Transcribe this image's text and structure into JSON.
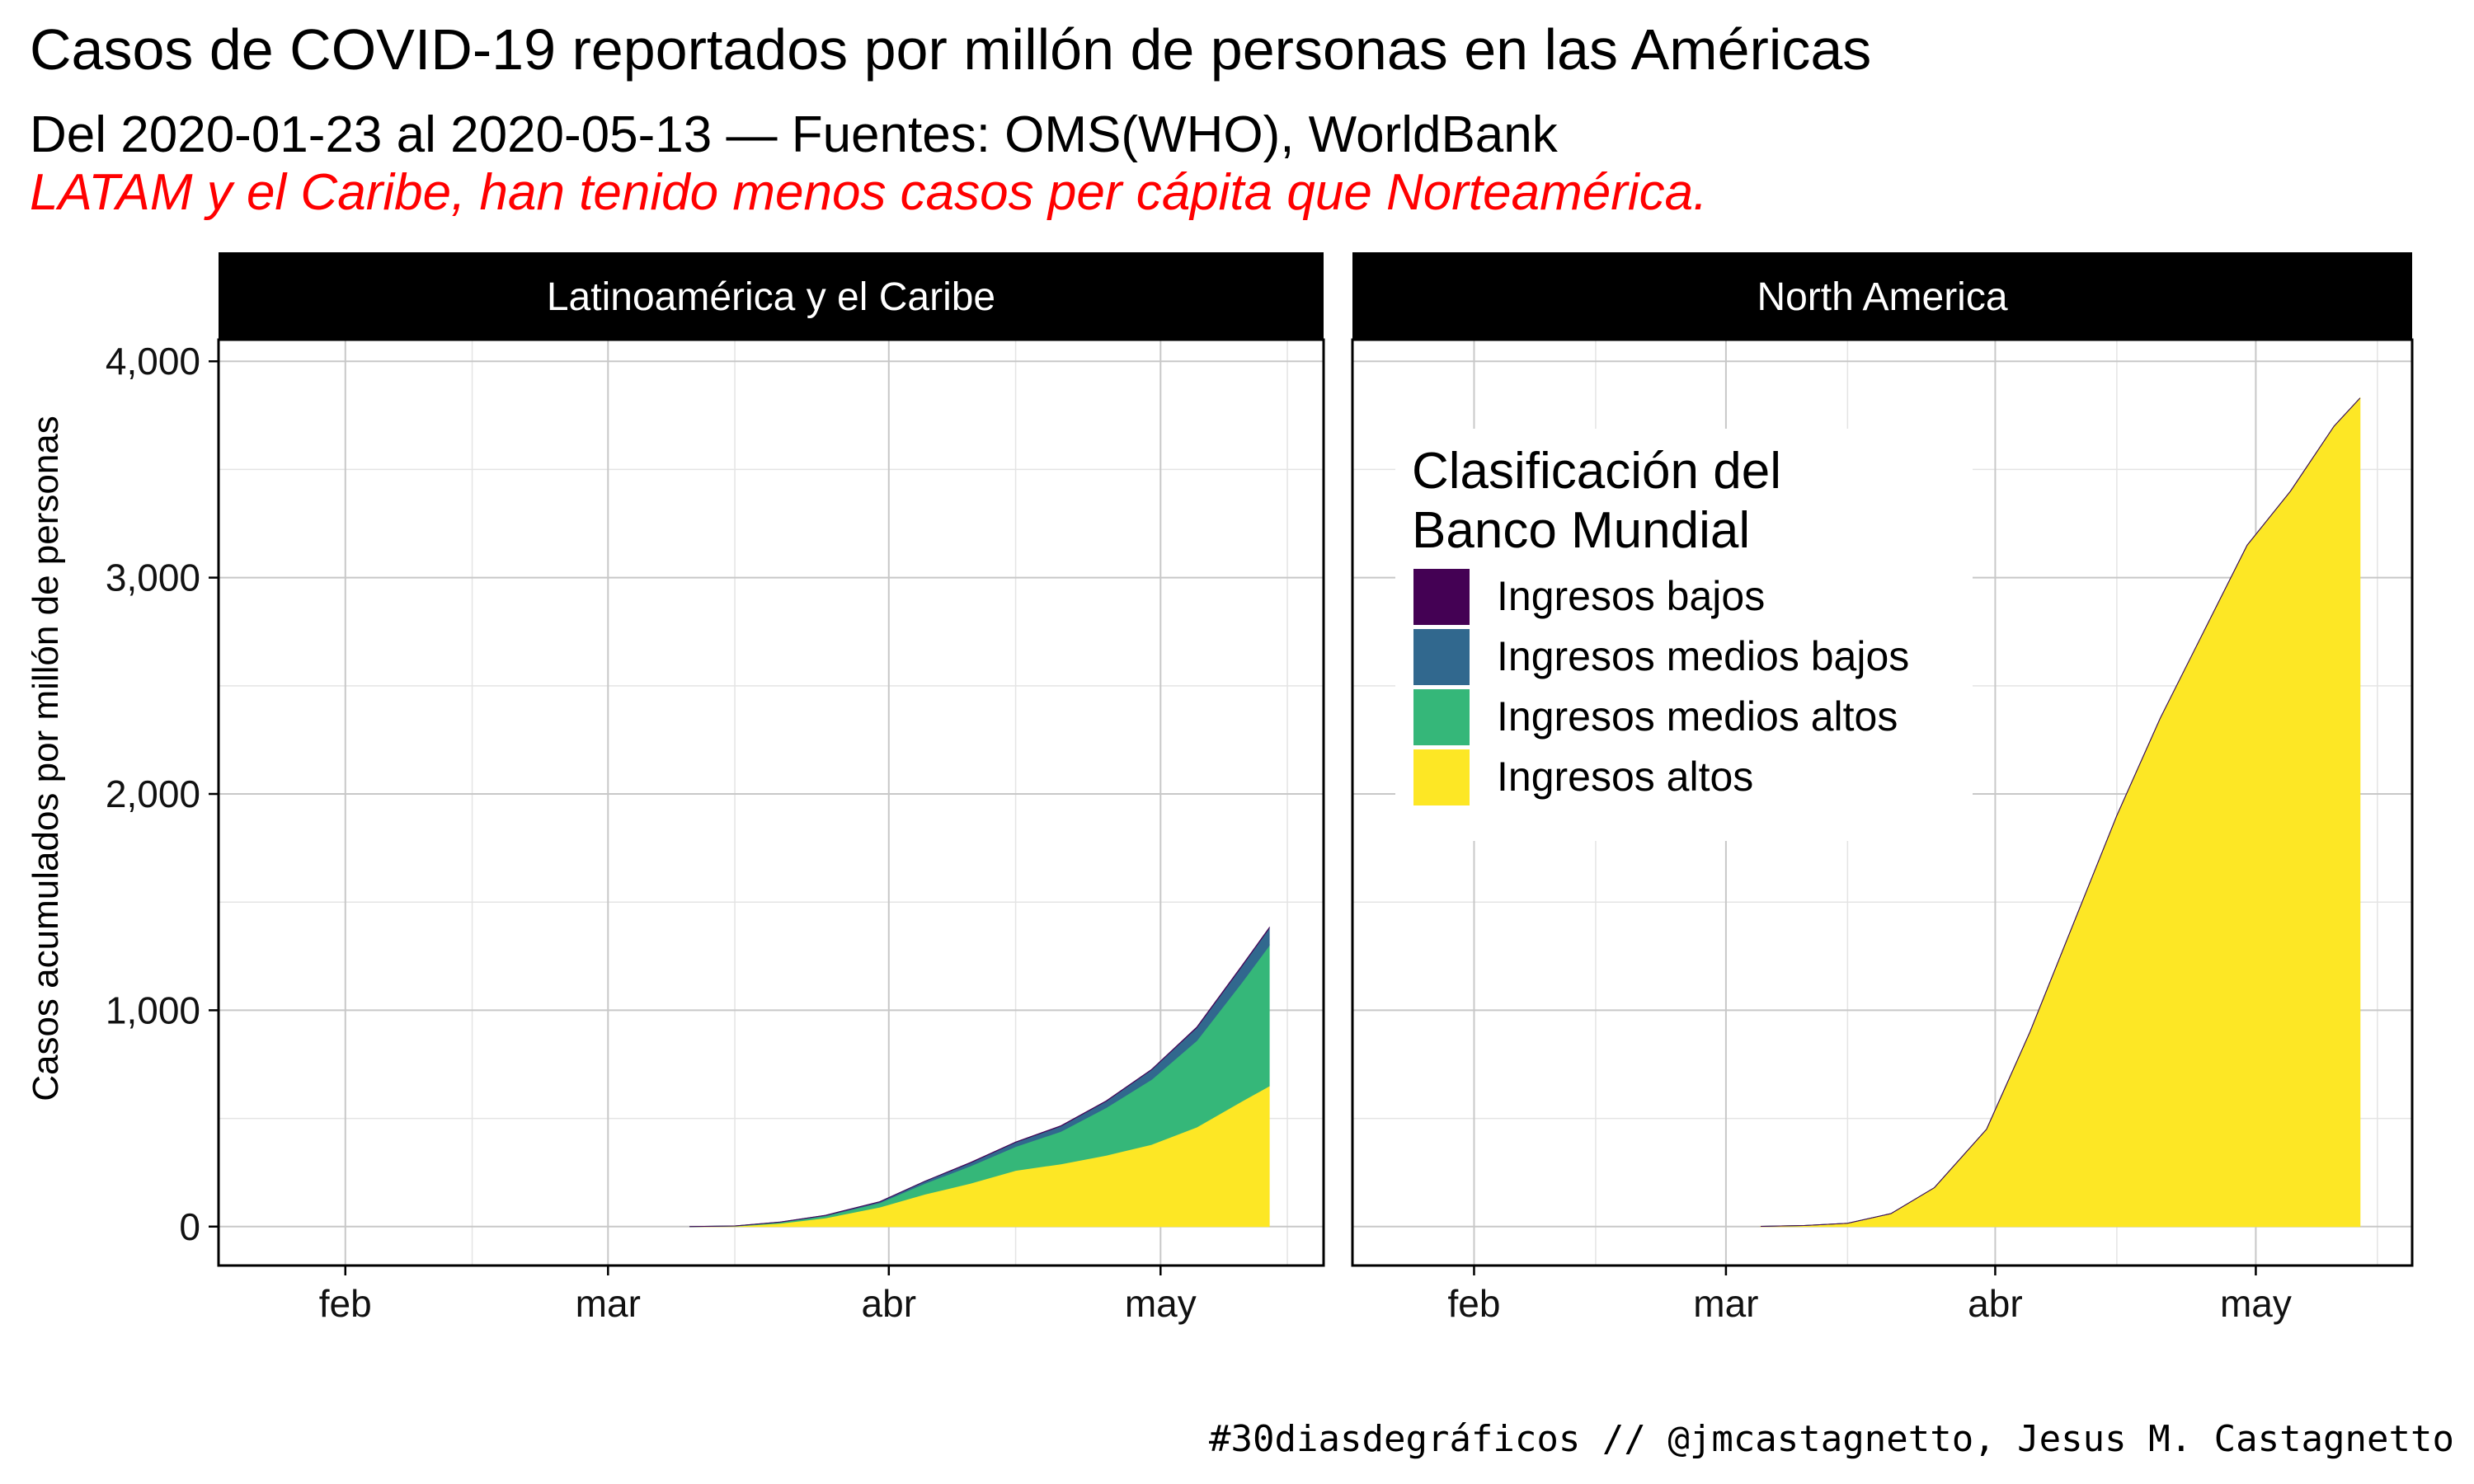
{
  "title": "Casos de COVID-19 reportados por millón de personas en las Américas",
  "subtitle": "Del 2020-01-23 al 2020-05-13 — Fuentes: OMS(WHO), WorldBank",
  "note": "LATAM y el Caribe, han tenido menos casos per cápita que Norteamérica.",
  "caption": "#30diasdegráficos // @jmcastagnetto, Jesus M. Castagnetto",
  "chart_data": {
    "type": "area",
    "stacked": true,
    "ylabel": "Casos acumulados por millón de personas",
    "ylim": [
      -180,
      4100
    ],
    "y_ticks": [
      0,
      1000,
      2000,
      3000,
      4000
    ],
    "y_tick_labels": [
      "0",
      "1,000",
      "2,000",
      "3,000",
      "4,000"
    ],
    "x_range": [
      "2020-01-18",
      "2020-05-19"
    ],
    "x_ticks": [
      "2020-02-01",
      "2020-03-01",
      "2020-04-01",
      "2020-05-01"
    ],
    "x_tick_labels": [
      "feb",
      "mar",
      "abr",
      "may"
    ],
    "grid": true,
    "legend": {
      "title_lines": [
        "Clasificación del",
        "Banco Mundial"
      ],
      "placement": "inside North America panel, top-left",
      "items": [
        {
          "label": "Ingresos bajos",
          "color": "#440154"
        },
        {
          "label": "Ingresos medios bajos",
          "color": "#31688e"
        },
        {
          "label": "Ingresos medios altos",
          "color": "#35b779"
        },
        {
          "label": "Ingresos altos",
          "color": "#fde725"
        }
      ]
    },
    "panels": [
      {
        "name": "Latinoamérica y el Caribe",
        "x": [
          "2020-03-10",
          "2020-03-15",
          "2020-03-20",
          "2020-03-25",
          "2020-03-31",
          "2020-04-05",
          "2020-04-10",
          "2020-04-15",
          "2020-04-20",
          "2020-04-25",
          "2020-04-30",
          "2020-05-05",
          "2020-05-10",
          "2020-05-13"
        ],
        "series": [
          {
            "name": "Ingresos bajos",
            "values": [
              0,
              0,
              0,
              0,
              0,
              0,
              1,
              1,
              1,
              1,
              1,
              2,
              2,
              2
            ]
          },
          {
            "name": "Ingresos medios bajos",
            "values": [
              0,
              0,
              1,
              2,
              5,
              10,
              15,
              20,
              25,
              30,
              45,
              60,
              75,
              80
            ]
          },
          {
            "name": "Ingresos medios altos",
            "values": [
              0,
              1,
              5,
              10,
              20,
              50,
              80,
              110,
              150,
              220,
              300,
              400,
              550,
              650
            ]
          },
          {
            "name": "Ingresos altos",
            "values": [
              0,
              2,
              15,
              40,
              90,
              150,
              200,
              260,
              290,
              330,
              380,
              460,
              580,
              650
            ]
          }
        ]
      },
      {
        "name": "North America",
        "x": [
          "2020-03-05",
          "2020-03-10",
          "2020-03-15",
          "2020-03-20",
          "2020-03-25",
          "2020-03-31",
          "2020-04-05",
          "2020-04-10",
          "2020-04-15",
          "2020-04-20",
          "2020-04-25",
          "2020-04-30",
          "2020-05-05",
          "2020-05-10",
          "2020-05-13"
        ],
        "series": [
          {
            "name": "Ingresos bajos",
            "values": [
              0,
              0,
              0,
              0,
              0,
              0,
              0,
              0,
              0,
              0,
              0,
              0,
              0,
              0,
              0
            ]
          },
          {
            "name": "Ingresos medios bajos",
            "values": [
              0,
              0,
              0,
              0,
              0,
              0,
              0,
              0,
              0,
              0,
              0,
              0,
              0,
              0,
              0
            ]
          },
          {
            "name": "Ingresos medios altos",
            "values": [
              0,
              0,
              0,
              0,
              0,
              0,
              0,
              0,
              0,
              0,
              0,
              0,
              0,
              0,
              0
            ]
          },
          {
            "name": "Ingresos altos",
            "values": [
              1,
              5,
              15,
              60,
              180,
              450,
              900,
              1400,
              1900,
              2350,
              2750,
              3150,
              3400,
              3700,
              3830
            ]
          }
        ]
      }
    ]
  }
}
